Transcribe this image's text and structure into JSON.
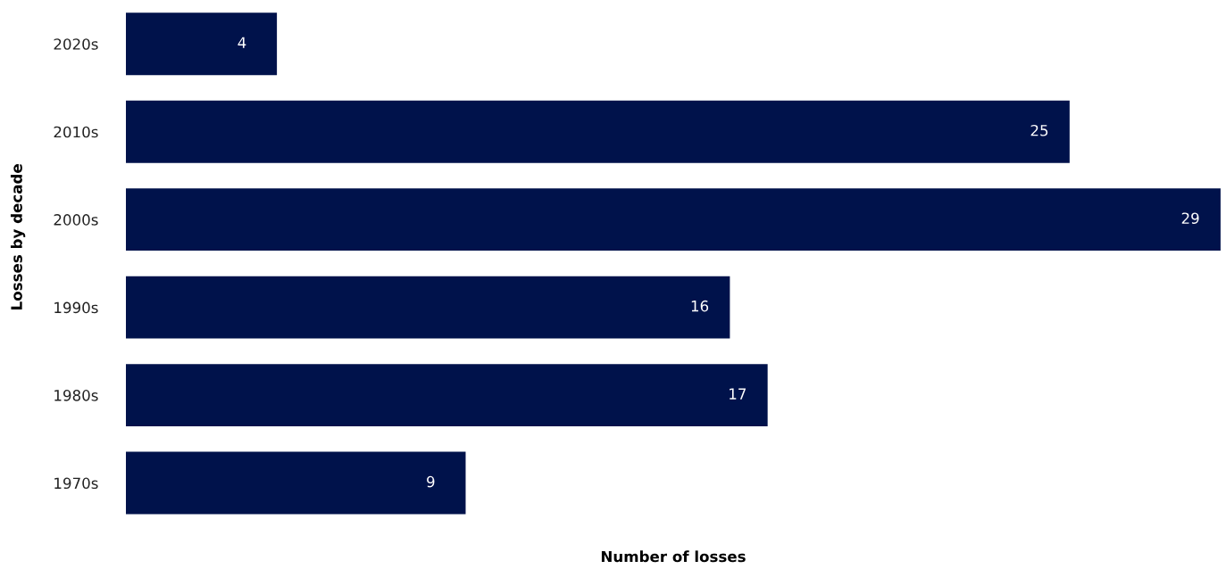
{
  "chart_data": {
    "type": "bar",
    "orientation": "horizontal",
    "categories": [
      "2020s",
      "2010s",
      "2000s",
      "1990s",
      "1980s",
      "1970s"
    ],
    "values": [
      4,
      25,
      29,
      16,
      17,
      9
    ],
    "color": "#00124b",
    "xlim": [
      0,
      29
    ],
    "xlabel": "Number of losses",
    "ylabel": "Losses by decade",
    "data_labels": true,
    "tick_labels": "y",
    "grid": false,
    "legend": false
  }
}
